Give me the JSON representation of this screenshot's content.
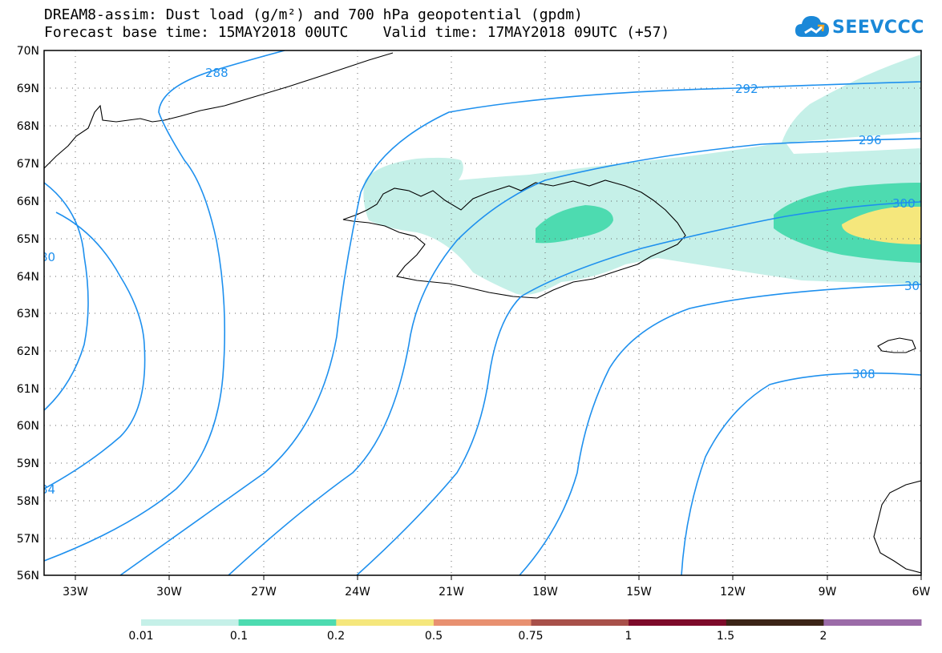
{
  "header": {
    "title_line1": "DREAM8-assim: Dust load (g/m²) and 700 hPa geopotential (gpdm)",
    "title_line2": "Forecast base time: 15MAY2018 00UTC    Valid time: 17MAY2018 09UTC (+57)"
  },
  "logo": {
    "text": "SEEVCCC",
    "icon": "cloud-icon",
    "color": "#1a88d8"
  },
  "map": {
    "lat_labels": [
      "70N",
      "69N",
      "68N",
      "67N",
      "66N",
      "65N",
      "64N",
      "63N",
      "62N",
      "61N",
      "60N",
      "59N",
      "58N",
      "57N",
      "56N"
    ],
    "lon_labels": [
      "33W",
      "30W",
      "27W",
      "24W",
      "21W",
      "18W",
      "15W",
      "12W",
      "9W",
      "6W"
    ],
    "contour_labels": [
      "288",
      "292",
      "296",
      "300",
      "30",
      "308",
      "80",
      "84"
    ],
    "contour_color": "#1e90ee"
  },
  "colorbar": {
    "levels": [
      "0.01",
      "0.1",
      "0.2",
      "0.5",
      "0.75",
      "1",
      "1.5",
      "2"
    ],
    "colors": [
      "#c5f0e8",
      "#4ddbb0",
      "#f5e77c",
      "#e89070",
      "#a8504a",
      "#7d0a2a",
      "#3b2416",
      "#9b6ba8"
    ]
  }
}
